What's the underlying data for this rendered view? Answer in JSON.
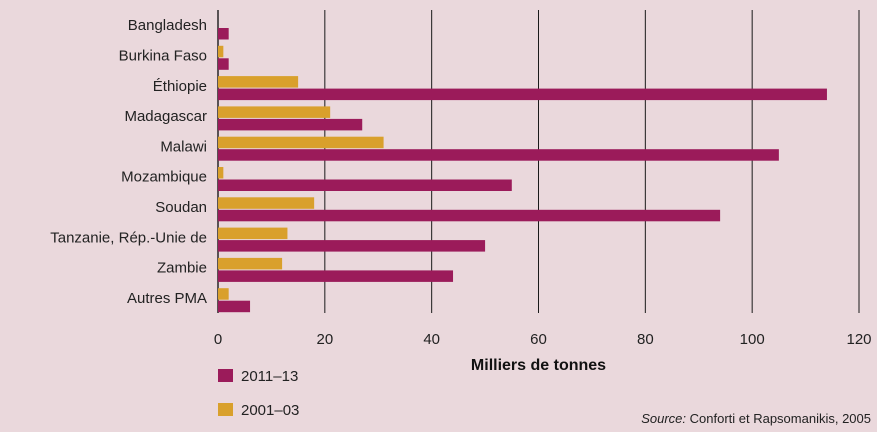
{
  "chart_data": {
    "type": "bar",
    "orientation": "horizontal",
    "categories": [
      "Bangladesh",
      "Burkina Faso",
      "Éthiopie",
      "Madagascar",
      "Malawi",
      "Mozambique",
      "Soudan",
      "Tanzanie, Rép.-Unie de",
      "Zambie",
      "Autres PMA"
    ],
    "series": [
      {
        "name": "2001–03",
        "color": "#d9a02c",
        "values": [
          0,
          1,
          15,
          21,
          31,
          1,
          18,
          13,
          12,
          2
        ]
      },
      {
        "name": "2011–13",
        "color": "#9b1b5a",
        "values": [
          2,
          2,
          114,
          27,
          105,
          55,
          94,
          50,
          44,
          6
        ]
      }
    ],
    "xlabel": "Milliers de tonnes",
    "xlim": [
      0,
      120
    ],
    "xticks": [
      0,
      20,
      40,
      60,
      80,
      100,
      120
    ],
    "grid": "vertical",
    "legend": {
      "placement": "bottom-left",
      "order": [
        "2011–13",
        "2001–03"
      ]
    }
  },
  "source": {
    "label": "Source:",
    "text": "Conforti et Rapsomanikis, 2005"
  }
}
